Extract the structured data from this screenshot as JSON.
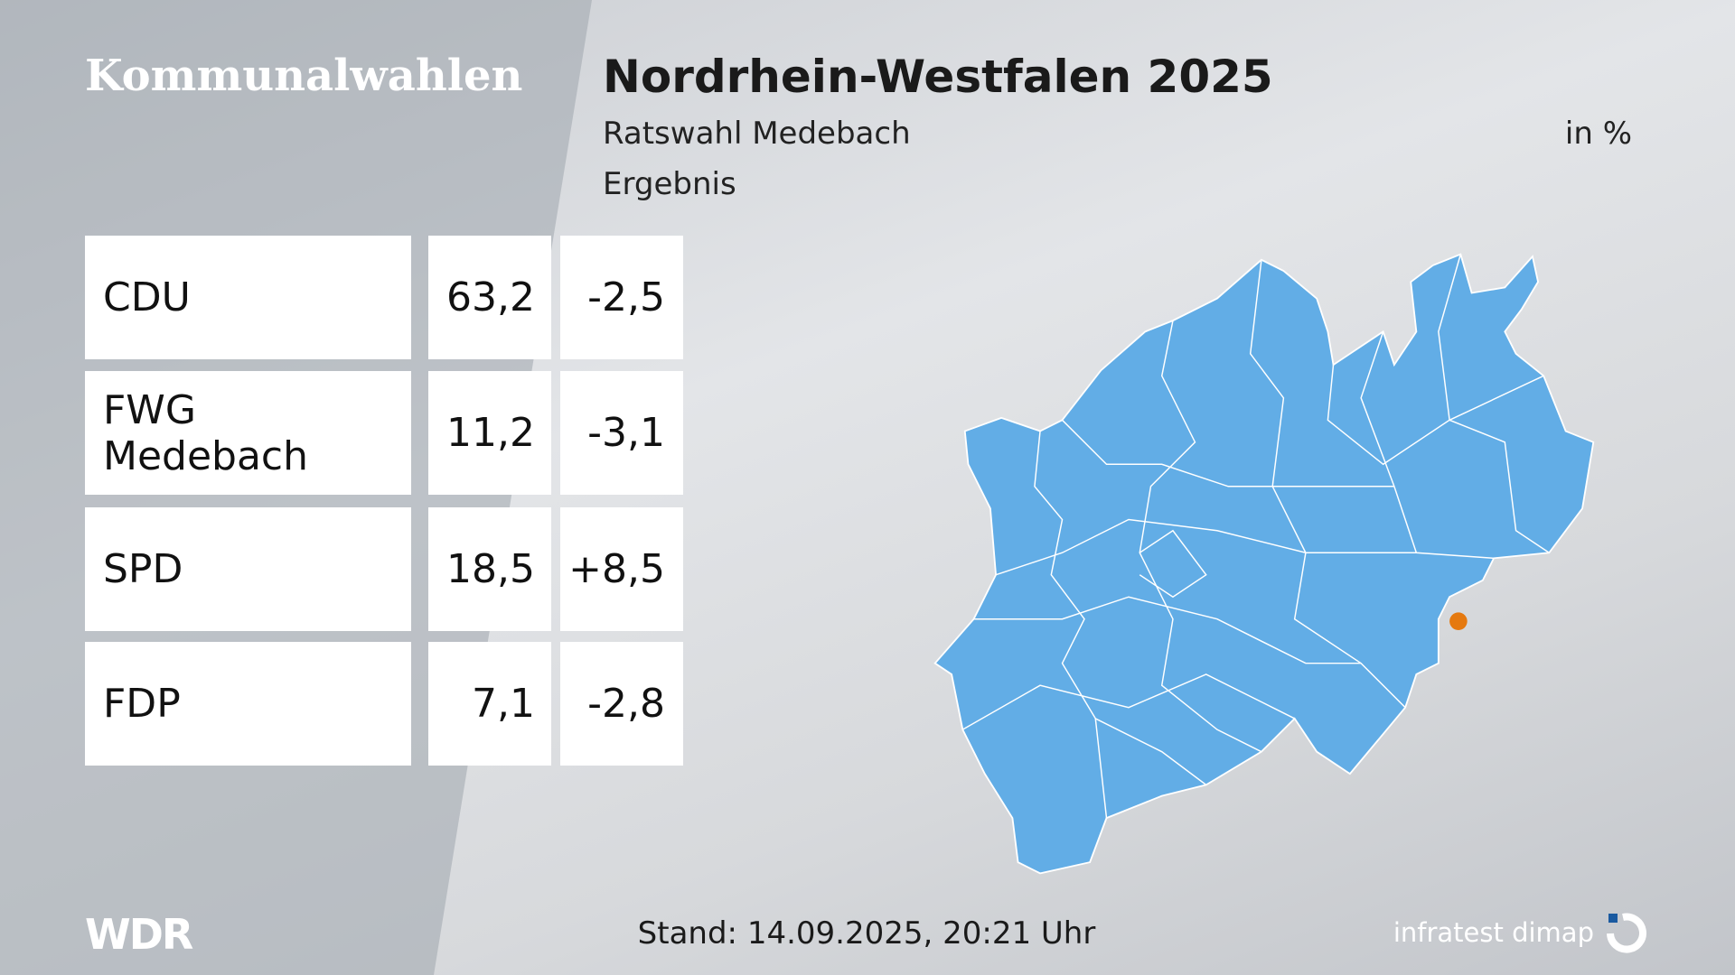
{
  "header": {
    "section": "Kommunalwahlen",
    "title": "Nordrhein-Westfalen 2025",
    "subtitle": "Ratswahl Medebach",
    "unit": "in %",
    "status": "Ergebnis"
  },
  "table": {
    "rows": [
      [
        "CDU",
        "63,2",
        "-2,5"
      ],
      [
        "FWG Medebach",
        "11,2",
        "-3,1"
      ],
      [
        "SPD",
        "18,5",
        "+8,5"
      ],
      [
        "FDP",
        "7,1",
        "-2,8"
      ]
    ]
  },
  "footer": {
    "logo": "WDR",
    "timestamp": "Stand: 14.09.2025, 20:21 Uhr",
    "institute": "infratest dimap"
  }
}
